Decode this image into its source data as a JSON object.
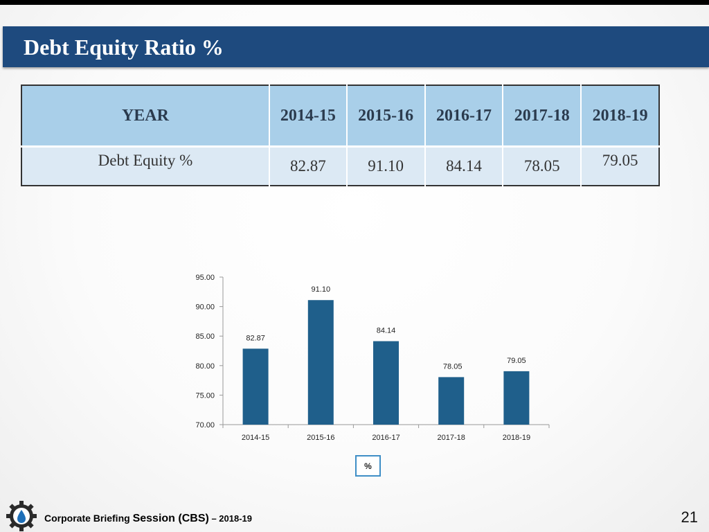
{
  "slide": {
    "title": "Debt Equity Ratio %",
    "page_number": "21"
  },
  "table": {
    "header_label": "YEAR",
    "row_label": "Debt Equity %",
    "years": [
      "2014-15",
      "2015-16",
      "2016-17",
      "2017-18",
      "2018-19"
    ],
    "values": [
      "82.87",
      "91.10",
      "84.14",
      "78.05",
      "79.05"
    ]
  },
  "chart_data": {
    "type": "bar",
    "categories": [
      "2014-15",
      "2015-16",
      "2016-17",
      "2017-18",
      "2018-19"
    ],
    "series": [
      {
        "name": "%",
        "values": [
          82.87,
          91.1,
          84.14,
          78.05,
          79.05
        ],
        "color": "#1f5f8b"
      }
    ],
    "data_labels": [
      "82.87",
      "91.10",
      "84.14",
      "78.05",
      "79.05"
    ],
    "y_ticks": [
      "70.00",
      "75.00",
      "80.00",
      "85.00",
      "90.00",
      "95.00"
    ],
    "ylim": [
      70,
      95
    ],
    "title": "",
    "xlabel": "",
    "ylabel": "",
    "grid": false,
    "legend_position": "bottom"
  },
  "footer": {
    "text_part1": "Corporate Briefing ",
    "text_part2": "Session (CBS)",
    "text_part3": " – 2018-19",
    "logo_icon": "gear-droplet-logo-icon"
  },
  "colors": {
    "title_bar": "#1e4a7e",
    "table_header": "#a9cfe9",
    "table_row": "#dce9f4",
    "bar": "#1f5f8b"
  }
}
